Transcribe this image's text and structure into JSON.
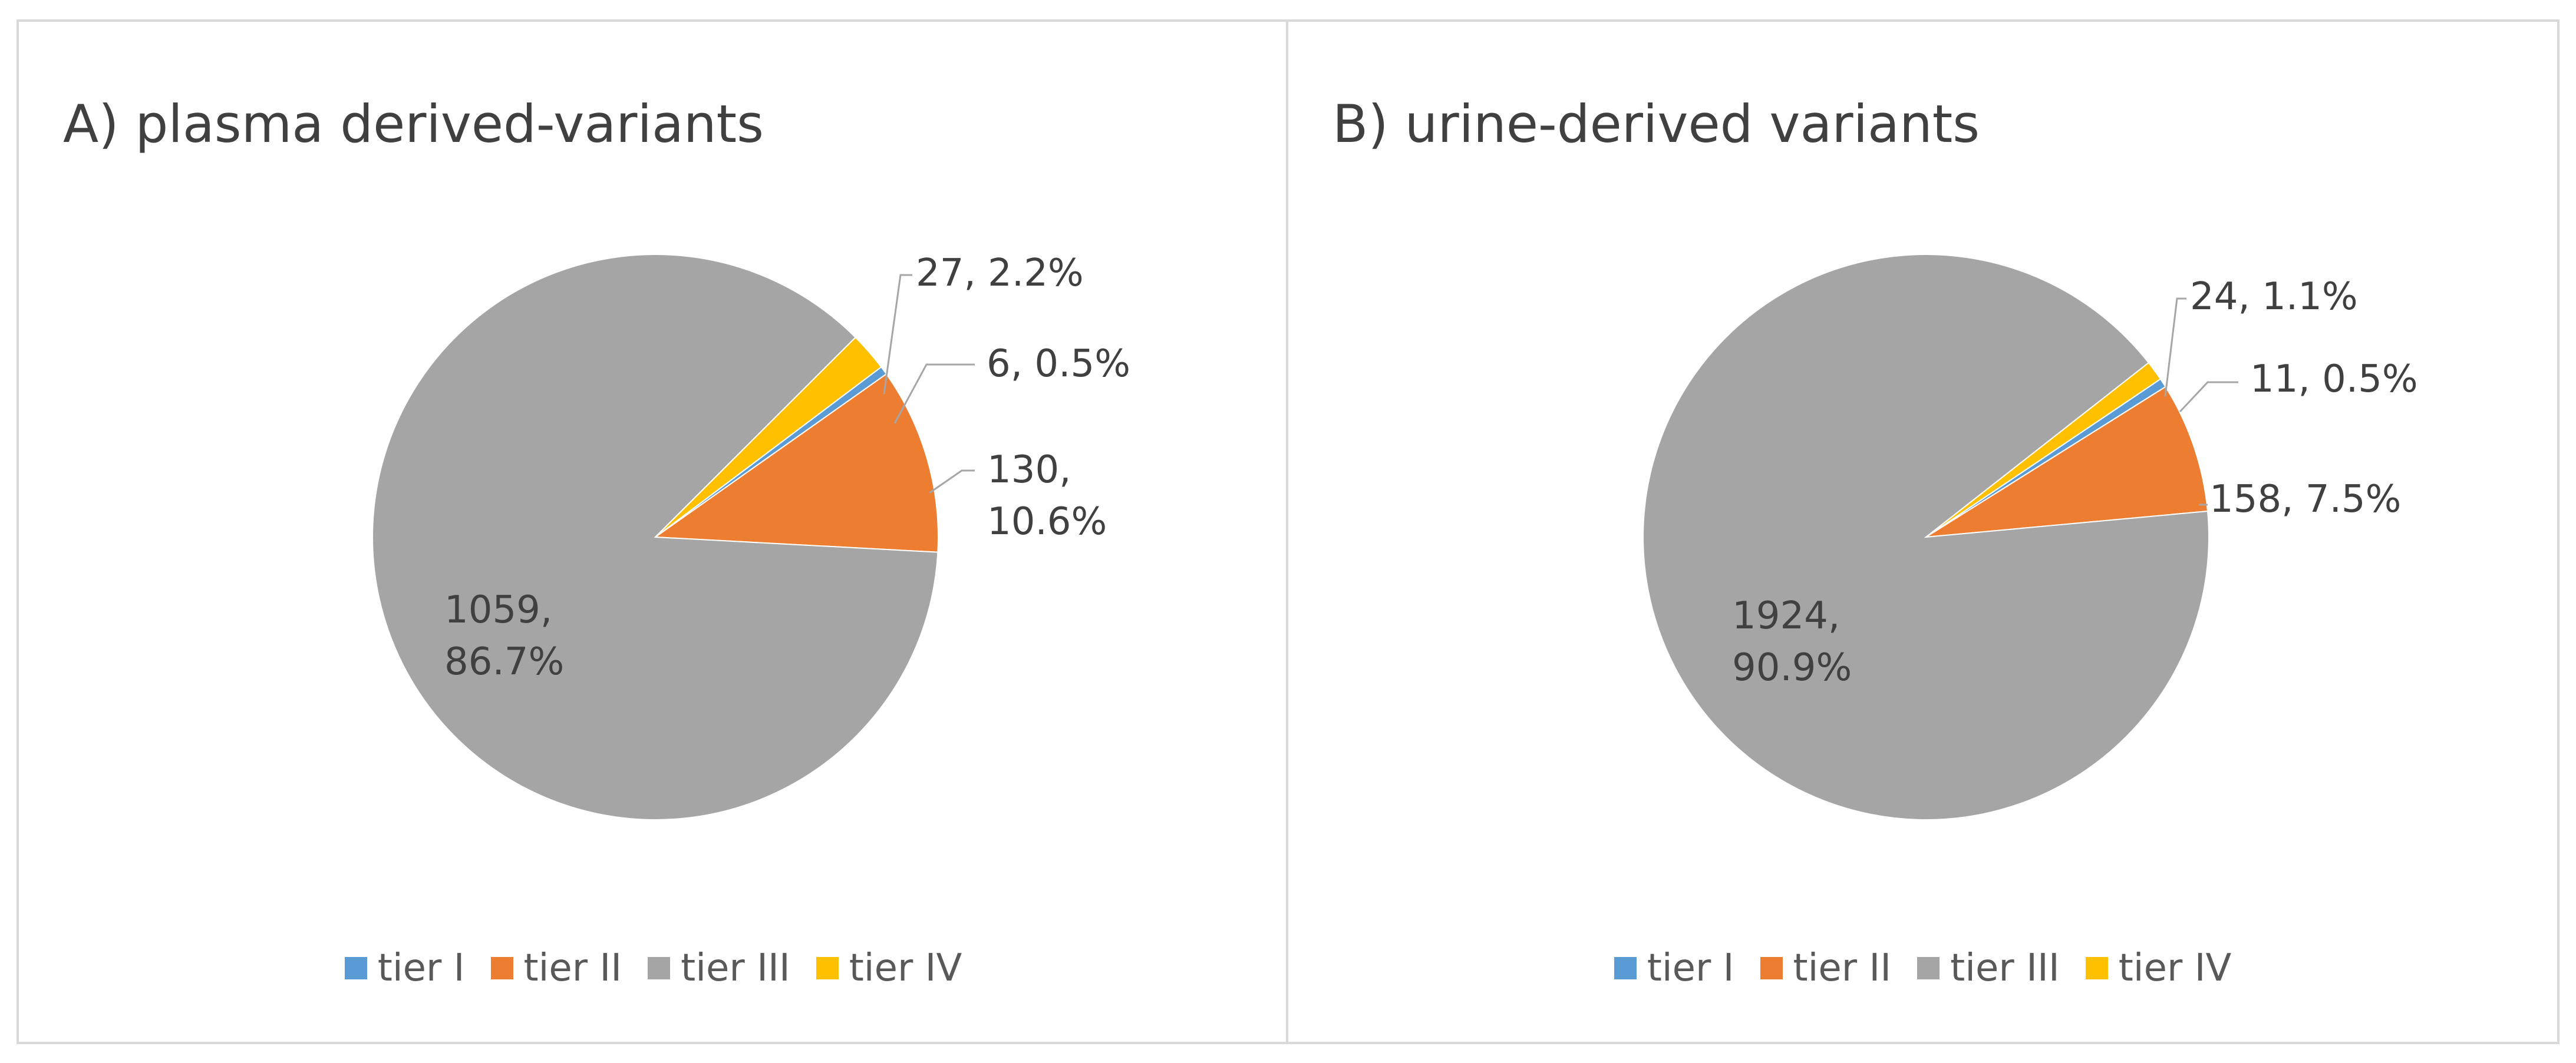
{
  "colors": {
    "tier_I": "#5b9bd5",
    "tier_II": "#ed7d31",
    "tier_III": "#a5a5a5",
    "tier_IV": "#ffc000"
  },
  "chart_data": [
    {
      "type": "pie",
      "title": "A) plasma derived-variants",
      "legend_position": "bottom",
      "categories": [
        "tier I",
        "tier II",
        "tier III",
        "tier IV"
      ],
      "values": [
        6,
        130,
        1059,
        27
      ],
      "percents": [
        "0.5%",
        "10.6%",
        "86.7%",
        "2.2%"
      ],
      "data_labels": [
        [
          "6, 0.5%"
        ],
        [
          "130,",
          "10.6%"
        ],
        [
          "1059,",
          "86.7%"
        ],
        [
          "27, 2.2%"
        ]
      ]
    },
    {
      "type": "pie",
      "title": "B) urine-derived variants",
      "legend_position": "bottom",
      "categories": [
        "tier I",
        "tier II",
        "tier III",
        "tier IV"
      ],
      "values": [
        11,
        158,
        1924,
        24
      ],
      "percents": [
        "0.5%",
        "7.5%",
        "90.9%",
        "1.1%"
      ],
      "data_labels": [
        [
          "11, 0.5%"
        ],
        [
          "158, 7.5%"
        ],
        [
          "1924,",
          "90.9%"
        ],
        [
          "24, 1.1%"
        ]
      ]
    }
  ]
}
